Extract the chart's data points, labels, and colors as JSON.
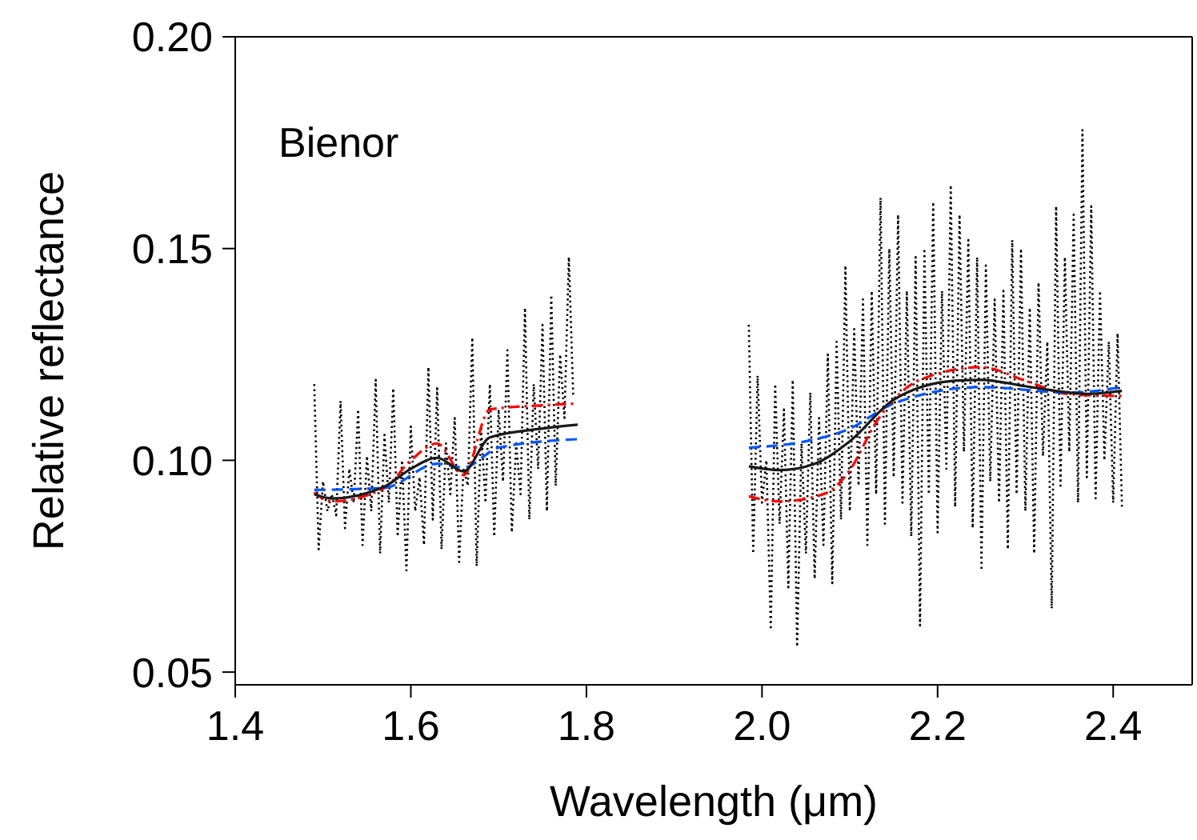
{
  "chart_data": {
    "type": "line",
    "xlabel": "Wavelength (μm)",
    "ylabel": "Relative reflectance",
    "annotations": [
      "Bienor"
    ],
    "xlim": [
      1.4,
      2.49
    ],
    "ylim": [
      0.047,
      0.2
    ],
    "xticks": [
      1.4,
      1.6,
      1.8,
      {
        "value": 2.0,
        "label": "2.0"
      },
      2.2,
      2.4
    ],
    "yticks": [
      0.05,
      {
        "value": 0.1,
        "label": "0.10"
      },
      0.15,
      {
        "value": 0.2,
        "label": "0.20"
      }
    ],
    "marker": "none",
    "series": [
      {
        "color": "#000000",
        "line_style": "dotted",
        "x": [
          1.49,
          1.495,
          1.5,
          1.505,
          1.51,
          1.515,
          1.52,
          1.525,
          1.53,
          1.535,
          1.54,
          1.545,
          1.55,
          1.555,
          1.56,
          1.565,
          1.57,
          1.575,
          1.58,
          1.585,
          1.59,
          1.595,
          1.6,
          1.605,
          1.61,
          1.615,
          1.62,
          1.625,
          1.63,
          1.635,
          1.64,
          1.645,
          1.65,
          1.655,
          1.66,
          1.665,
          1.67,
          1.675,
          1.68,
          1.685,
          1.69,
          1.695,
          1.7,
          1.705,
          1.71,
          1.715,
          1.72,
          1.725,
          1.73,
          1.735,
          1.74,
          1.745,
          1.75,
          1.755,
          1.76,
          1.765,
          1.77,
          1.775,
          1.78,
          1.785,
          1.885,
          1.985,
          1.99,
          1.995,
          2.0,
          2.005,
          2.01,
          2.015,
          2.02,
          2.025,
          2.03,
          2.035,
          2.04,
          2.045,
          2.05,
          2.055,
          2.06,
          2.065,
          2.07,
          2.075,
          2.08,
          2.085,
          2.09,
          2.095,
          2.1,
          2.105,
          2.11,
          2.115,
          2.12,
          2.125,
          2.13,
          2.135,
          2.14,
          2.145,
          2.15,
          2.155,
          2.16,
          2.165,
          2.17,
          2.175,
          2.18,
          2.185,
          2.19,
          2.195,
          2.2,
          2.205,
          2.21,
          2.215,
          2.22,
          2.225,
          2.23,
          2.235,
          2.24,
          2.245,
          2.25,
          2.255,
          2.26,
          2.265,
          2.27,
          2.275,
          2.28,
          2.285,
          2.29,
          2.295,
          2.3,
          2.305,
          2.31,
          2.315,
          2.32,
          2.325,
          2.33,
          2.335,
          2.34,
          2.345,
          2.35,
          2.355,
          2.36,
          2.365,
          2.37,
          2.375,
          2.38,
          2.385,
          2.39,
          2.395,
          2.4,
          2.405,
          2.41
        ],
        "values": [
          0.118,
          0.079,
          0.095,
          0.088,
          0.092,
          0.087,
          0.114,
          0.084,
          0.098,
          0.09,
          0.112,
          0.08,
          0.101,
          0.088,
          0.119,
          0.078,
          0.106,
          0.09,
          0.117,
          0.082,
          0.1,
          0.074,
          0.108,
          0.088,
          0.096,
          0.08,
          0.122,
          0.086,
          0.117,
          0.079,
          0.104,
          0.092,
          0.11,
          0.076,
          0.098,
          0.094,
          0.129,
          0.075,
          0.108,
          0.09,
          0.118,
          0.082,
          0.112,
          0.095,
          0.126,
          0.083,
          0.104,
          0.092,
          0.136,
          0.086,
          0.118,
          0.098,
          0.132,
          0.088,
          0.139,
          0.094,
          0.125,
          0.11,
          0.148,
          0.115,
          null,
          0.132,
          0.078,
          0.12,
          0.09,
          0.1,
          0.06,
          0.118,
          0.085,
          0.112,
          0.07,
          0.119,
          0.056,
          0.104,
          0.078,
          0.116,
          0.072,
          0.11,
          0.08,
          0.125,
          0.071,
          0.128,
          0.086,
          0.146,
          0.088,
          0.131,
          0.094,
          0.138,
          0.08,
          0.14,
          0.092,
          0.162,
          0.085,
          0.15,
          0.096,
          0.158,
          0.09,
          0.14,
          0.082,
          0.148,
          0.061,
          0.15,
          0.092,
          0.161,
          0.083,
          0.14,
          0.098,
          0.165,
          0.089,
          0.158,
          0.102,
          0.152,
          0.084,
          0.148,
          0.074,
          0.146,
          0.095,
          0.138,
          0.09,
          0.14,
          0.079,
          0.152,
          0.092,
          0.15,
          0.088,
          0.136,
          0.078,
          0.142,
          0.101,
          0.128,
          0.065,
          0.16,
          0.094,
          0.148,
          0.102,
          0.158,
          0.09,
          0.178,
          0.096,
          0.16,
          0.091,
          0.14,
          0.1,
          0.128,
          0.09,
          0.13,
          0.089
        ]
      },
      {
        "color": "#ff0000",
        "line_style": "dashdot",
        "x": [
          1.49,
          1.51,
          1.57,
          1.6,
          1.63,
          1.66,
          1.69,
          1.75,
          1.79,
          1.885,
          1.985,
          2.02,
          2.07,
          2.1,
          2.13,
          2.18,
          2.25,
          2.3,
          2.35,
          2.41
        ],
        "values": [
          0.0924,
          0.0903,
          0.0935,
          0.1,
          0.104,
          0.0965,
          0.112,
          0.113,
          0.1134,
          null,
          0.0915,
          0.0903,
          0.092,
          0.0977,
          0.109,
          0.119,
          0.122,
          0.1188,
          0.1156,
          0.1152
        ]
      },
      {
        "color": "#0055ff",
        "line_style": "dashed",
        "x": [
          1.49,
          1.57,
          1.63,
          1.66,
          1.7,
          1.79,
          1.885,
          1.985,
          2.05,
          2.1,
          2.15,
          2.25,
          2.35,
          2.41
        ],
        "values": [
          0.093,
          0.0935,
          0.0992,
          0.0983,
          0.103,
          0.105,
          null,
          0.103,
          0.1045,
          0.1075,
          0.1134,
          0.1173,
          0.116,
          0.1173
        ]
      },
      {
        "color": "#1a1a1a",
        "line_style": "solid",
        "x": [
          1.49,
          1.51,
          1.57,
          1.6,
          1.63,
          1.66,
          1.69,
          1.75,
          1.79,
          1.885,
          1.985,
          2.02,
          2.06,
          2.1,
          2.15,
          2.22,
          2.25,
          2.3,
          2.35,
          2.37,
          2.41
        ],
        "values": [
          0.092,
          0.091,
          0.0938,
          0.098,
          0.1006,
          0.0974,
          0.1054,
          0.1075,
          0.1084,
          null,
          0.0986,
          0.0977,
          0.0992,
          0.1045,
          0.1143,
          0.1188,
          0.119,
          0.1175,
          0.116,
          0.1157,
          0.1164
        ]
      }
    ]
  }
}
